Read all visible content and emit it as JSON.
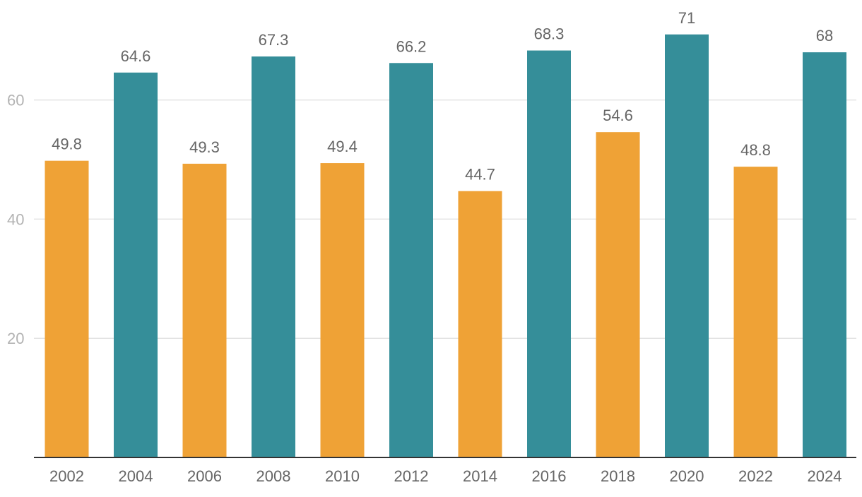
{
  "chart_data": {
    "type": "bar",
    "title": "",
    "xlabel": "",
    "ylabel": "",
    "ylim": [
      0,
      72
    ],
    "yticks": [
      20,
      40,
      60
    ],
    "grid": true,
    "categories": [
      "2002",
      "2004",
      "2006",
      "2008",
      "2010",
      "2012",
      "2014",
      "2016",
      "2018",
      "2020",
      "2022",
      "2024"
    ],
    "values": [
      49.8,
      64.6,
      49.3,
      67.3,
      49.4,
      66.2,
      44.7,
      68.3,
      54.6,
      71,
      48.8,
      68
    ],
    "value_labels": [
      "49.8",
      "64.6",
      "49.3",
      "67.3",
      "49.4",
      "66.2",
      "44.7",
      "68.3",
      "54.6",
      "71",
      "48.8",
      "68"
    ],
    "colors": [
      "#efa236",
      "#358e99",
      "#efa236",
      "#358e99",
      "#efa236",
      "#358e99",
      "#efa236",
      "#358e99",
      "#efa236",
      "#358e99",
      "#efa236",
      "#358e99"
    ]
  }
}
